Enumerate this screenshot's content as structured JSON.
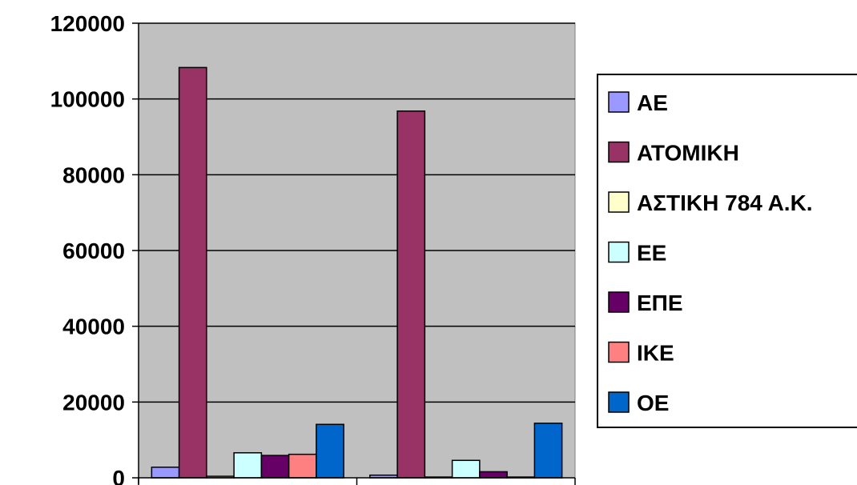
{
  "chart_data": {
    "type": "bar",
    "categories": [
      "",
      ""
    ],
    "ylim": [
      0,
      120000
    ],
    "yticks": [
      0,
      20000,
      40000,
      60000,
      80000,
      100000,
      120000
    ],
    "grid": true,
    "legend_position": "right",
    "plot_background": "#c0c0c0",
    "series": [
      {
        "name": "ΑΕ",
        "color": "#9999ff",
        "values": [
          2800,
          700
        ]
      },
      {
        "name": "ΑΤΟΜΙΚΗ",
        "color": "#993366",
        "values": [
          108300,
          96800
        ]
      },
      {
        "name": "ΑΣΤΙΚΗ 784 Α.Κ.",
        "color": "#ffffcc",
        "values": [
          400,
          200
        ]
      },
      {
        "name": "ΕΕ",
        "color": "#ccffff",
        "values": [
          6600,
          4600
        ]
      },
      {
        "name": "ΕΠΕ",
        "color": "#660066",
        "values": [
          5900,
          1600
        ]
      },
      {
        "name": "ΙΚΕ",
        "color": "#ff8080",
        "values": [
          6200,
          200
        ]
      },
      {
        "name": "ΟΕ",
        "color": "#0066cc",
        "values": [
          14100,
          14400
        ]
      }
    ]
  }
}
